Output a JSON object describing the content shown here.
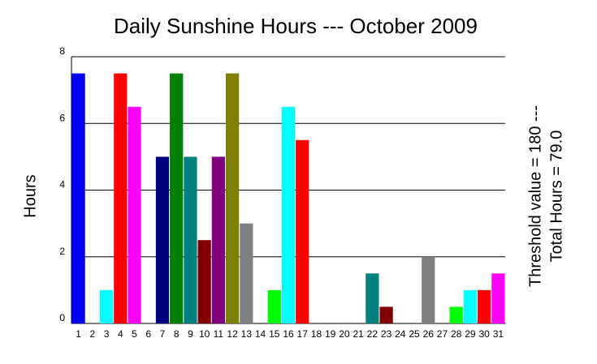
{
  "chart_data": {
    "type": "bar",
    "title": "Daily Sunshine Hours --- October 2009",
    "y_label": "Hours",
    "annotations": [
      "Threshold value =  180  ---",
      "Total Hours = 79.0"
    ],
    "categories": [
      "1",
      "2",
      "3",
      "4",
      "5",
      "6",
      "7",
      "8",
      "9",
      "10",
      "11",
      "12",
      "13",
      "14",
      "15",
      "16",
      "17",
      "18",
      "19",
      "20",
      "21",
      "22",
      "23",
      "24",
      "25",
      "26",
      "27",
      "28",
      "29",
      "30",
      "31"
    ],
    "values": [
      7.5,
      0,
      1,
      7.5,
      6.5,
      0,
      5,
      7.5,
      5,
      2.5,
      5,
      7.5,
      3,
      0,
      1,
      6.5,
      5.5,
      0,
      0,
      0,
      0,
      1.5,
      0.5,
      0,
      0,
      2,
      0,
      0.5,
      1,
      1,
      1.5
    ],
    "colors": [
      "#0000ff",
      "#00ff00",
      "#00ffff",
      "#ff0000",
      "#ff00ff",
      "#ffff00",
      "#000080",
      "#008000",
      "#008080",
      "#800000",
      "#800080",
      "#808000",
      "#808080",
      "#c0c0c0",
      "#00ff00",
      "#00ffff",
      "#ff0000",
      "#ff00ff",
      "#ffff00",
      "#000080",
      "#008000",
      "#008080",
      "#800000",
      "#800080",
      "#808000",
      "#808080",
      "#c0c0c0",
      "#00ff00",
      "#00ffff",
      "#ff0000",
      "#ff00ff"
    ],
    "ylim": [
      0,
      8
    ],
    "yticks": [
      0,
      2,
      4,
      6,
      8
    ],
    "grid": true
  }
}
